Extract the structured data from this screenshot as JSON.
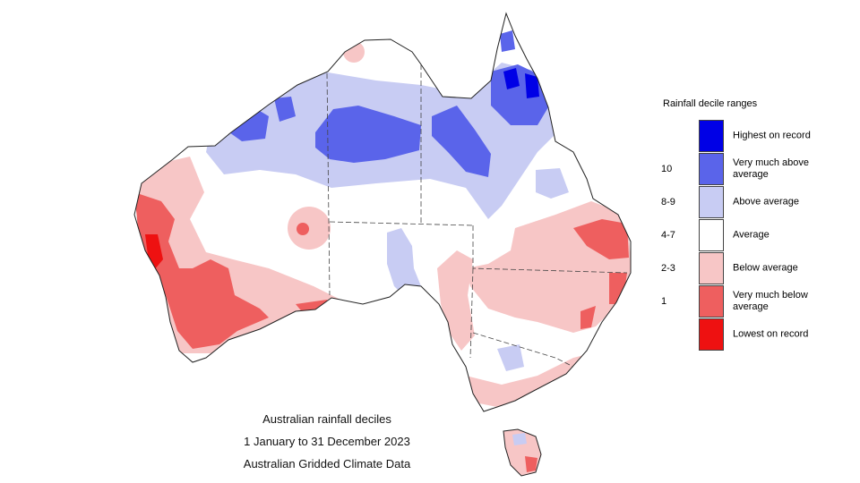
{
  "title_lines": [
    "Australian rainfall deciles",
    "1 January to 31 December 2023",
    "Australian Gridded Climate Data"
  ],
  "legend": {
    "title": "Rainfall decile ranges",
    "items": [
      {
        "decile": "",
        "label": "Highest on record",
        "color": "#0000e6"
      },
      {
        "decile": "10",
        "label": "Very much above average",
        "color": "#5a64ea"
      },
      {
        "decile": "8-9",
        "label": "Above average",
        "color": "#c8ccf3"
      },
      {
        "decile": "4-7",
        "label": "Average",
        "color": "#ffffff"
      },
      {
        "decile": "2-3",
        "label": "Below average",
        "color": "#f7c6c6"
      },
      {
        "decile": "1",
        "label": "Very much below average",
        "color": "#ee5f5f"
      },
      {
        "decile": "",
        "label": "Lowest on record",
        "color": "#ee1111"
      }
    ]
  }
}
